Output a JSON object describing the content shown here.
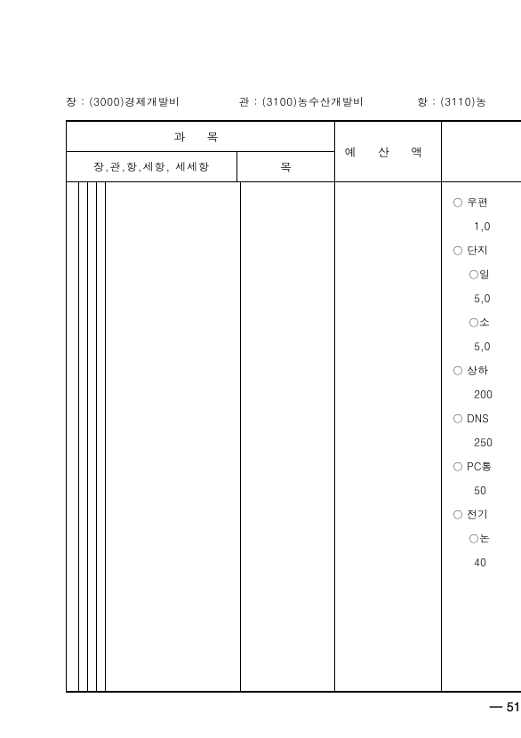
{
  "header": {
    "jang": "장 : (3000)경제개발비",
    "gwan": "관 : (3100)농수산개발비",
    "hang": "항 : (3110)농"
  },
  "tableHeader": {
    "gwamok": "과        목",
    "subLeft": "장,관,항,세항, 세세항",
    "subRight": "목",
    "yesan": "예  산  액"
  },
  "details": [
    {
      "type": "main",
      "text": "○ 우편"
    },
    {
      "type": "value",
      "text": "1,0"
    },
    {
      "type": "main",
      "text": "○ 단지"
    },
    {
      "type": "sub",
      "text": "○일"
    },
    {
      "type": "value",
      "text": "5,0"
    },
    {
      "type": "sub",
      "text": "○소"
    },
    {
      "type": "value",
      "text": "5,0"
    },
    {
      "type": "main",
      "text": "○ 상하"
    },
    {
      "type": "value",
      "text": "200"
    },
    {
      "type": "main",
      "text": "○ DNS"
    },
    {
      "type": "value",
      "text": "250"
    },
    {
      "type": "main",
      "text": "○ PC통"
    },
    {
      "type": "value",
      "text": "50"
    },
    {
      "type": "main",
      "text": "○ 전기"
    },
    {
      "type": "sub",
      "text": "○논"
    },
    {
      "type": "value",
      "text": "40"
    }
  ],
  "pageNumber": "— 51"
}
